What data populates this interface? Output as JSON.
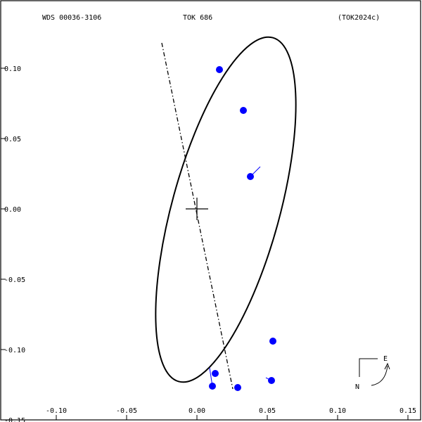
{
  "header": {
    "left": "WDS 00036-3106",
    "center": "TOK 686",
    "right": "(TOK2024c)"
  },
  "compass": {
    "east_label": "E",
    "north_label": "N"
  },
  "colors": {
    "background": "#ffffff",
    "axes": "#000000",
    "orbit": "#000000",
    "observations": "#0000ff",
    "residual_lines": "#0000ff"
  },
  "chart_data": {
    "type": "scatter",
    "title": "",
    "xlabel": "",
    "ylabel": "",
    "xlim": [
      -0.1,
      0.15
    ],
    "ylim": [
      -0.15,
      0.125
    ],
    "x_ticks": [
      -0.1,
      -0.05,
      0.0,
      0.05,
      0.1,
      0.15
    ],
    "x_tick_labels": [
      "-0.10",
      "-0.05",
      "0.00",
      "0.05",
      "0.10",
      "0.15"
    ],
    "y_ticks": [
      0.1,
      0.05,
      0.0,
      -0.05,
      -0.1,
      -0.15
    ],
    "y_tick_labels": [
      "0.10",
      "0.05",
      "0.00",
      "-0.05",
      "-0.10",
      "-0.15"
    ],
    "grid": false,
    "orbit_ellipse": {
      "center": [
        0.0205,
        -0.0005
      ],
      "semi_major": 0.1267,
      "semi_minor": 0.0383,
      "major_axis_angle_deg": 105.3
    },
    "line_of_nodes": {
      "start": [
        -0.025,
        0.118
      ],
      "end": [
        0.0255,
        -0.128
      ]
    },
    "primary_star": [
      0.0,
      0.0
    ],
    "observations": [
      {
        "x": 0.016,
        "y": 0.099,
        "fit_x": 0.016,
        "fit_y": 0.099
      },
      {
        "x": 0.033,
        "y": 0.07,
        "fit_x": 0.033,
        "fit_y": 0.07
      },
      {
        "x": 0.038,
        "y": 0.023,
        "fit_x": 0.045,
        "fit_y": 0.03
      },
      {
        "x": 0.054,
        "y": -0.094,
        "fit_x": 0.054,
        "fit_y": -0.094
      },
      {
        "x": 0.053,
        "y": -0.122,
        "fit_x": 0.049,
        "fit_y": -0.12
      },
      {
        "x": 0.029,
        "y": -0.127,
        "fit_x": 0.029,
        "fit_y": -0.127
      },
      {
        "x": 0.013,
        "y": -0.117,
        "fit_x": 0.013,
        "fit_y": -0.117
      },
      {
        "x": 0.011,
        "y": -0.126,
        "fit_x": 0.009,
        "fit_y": -0.113
      }
    ]
  }
}
